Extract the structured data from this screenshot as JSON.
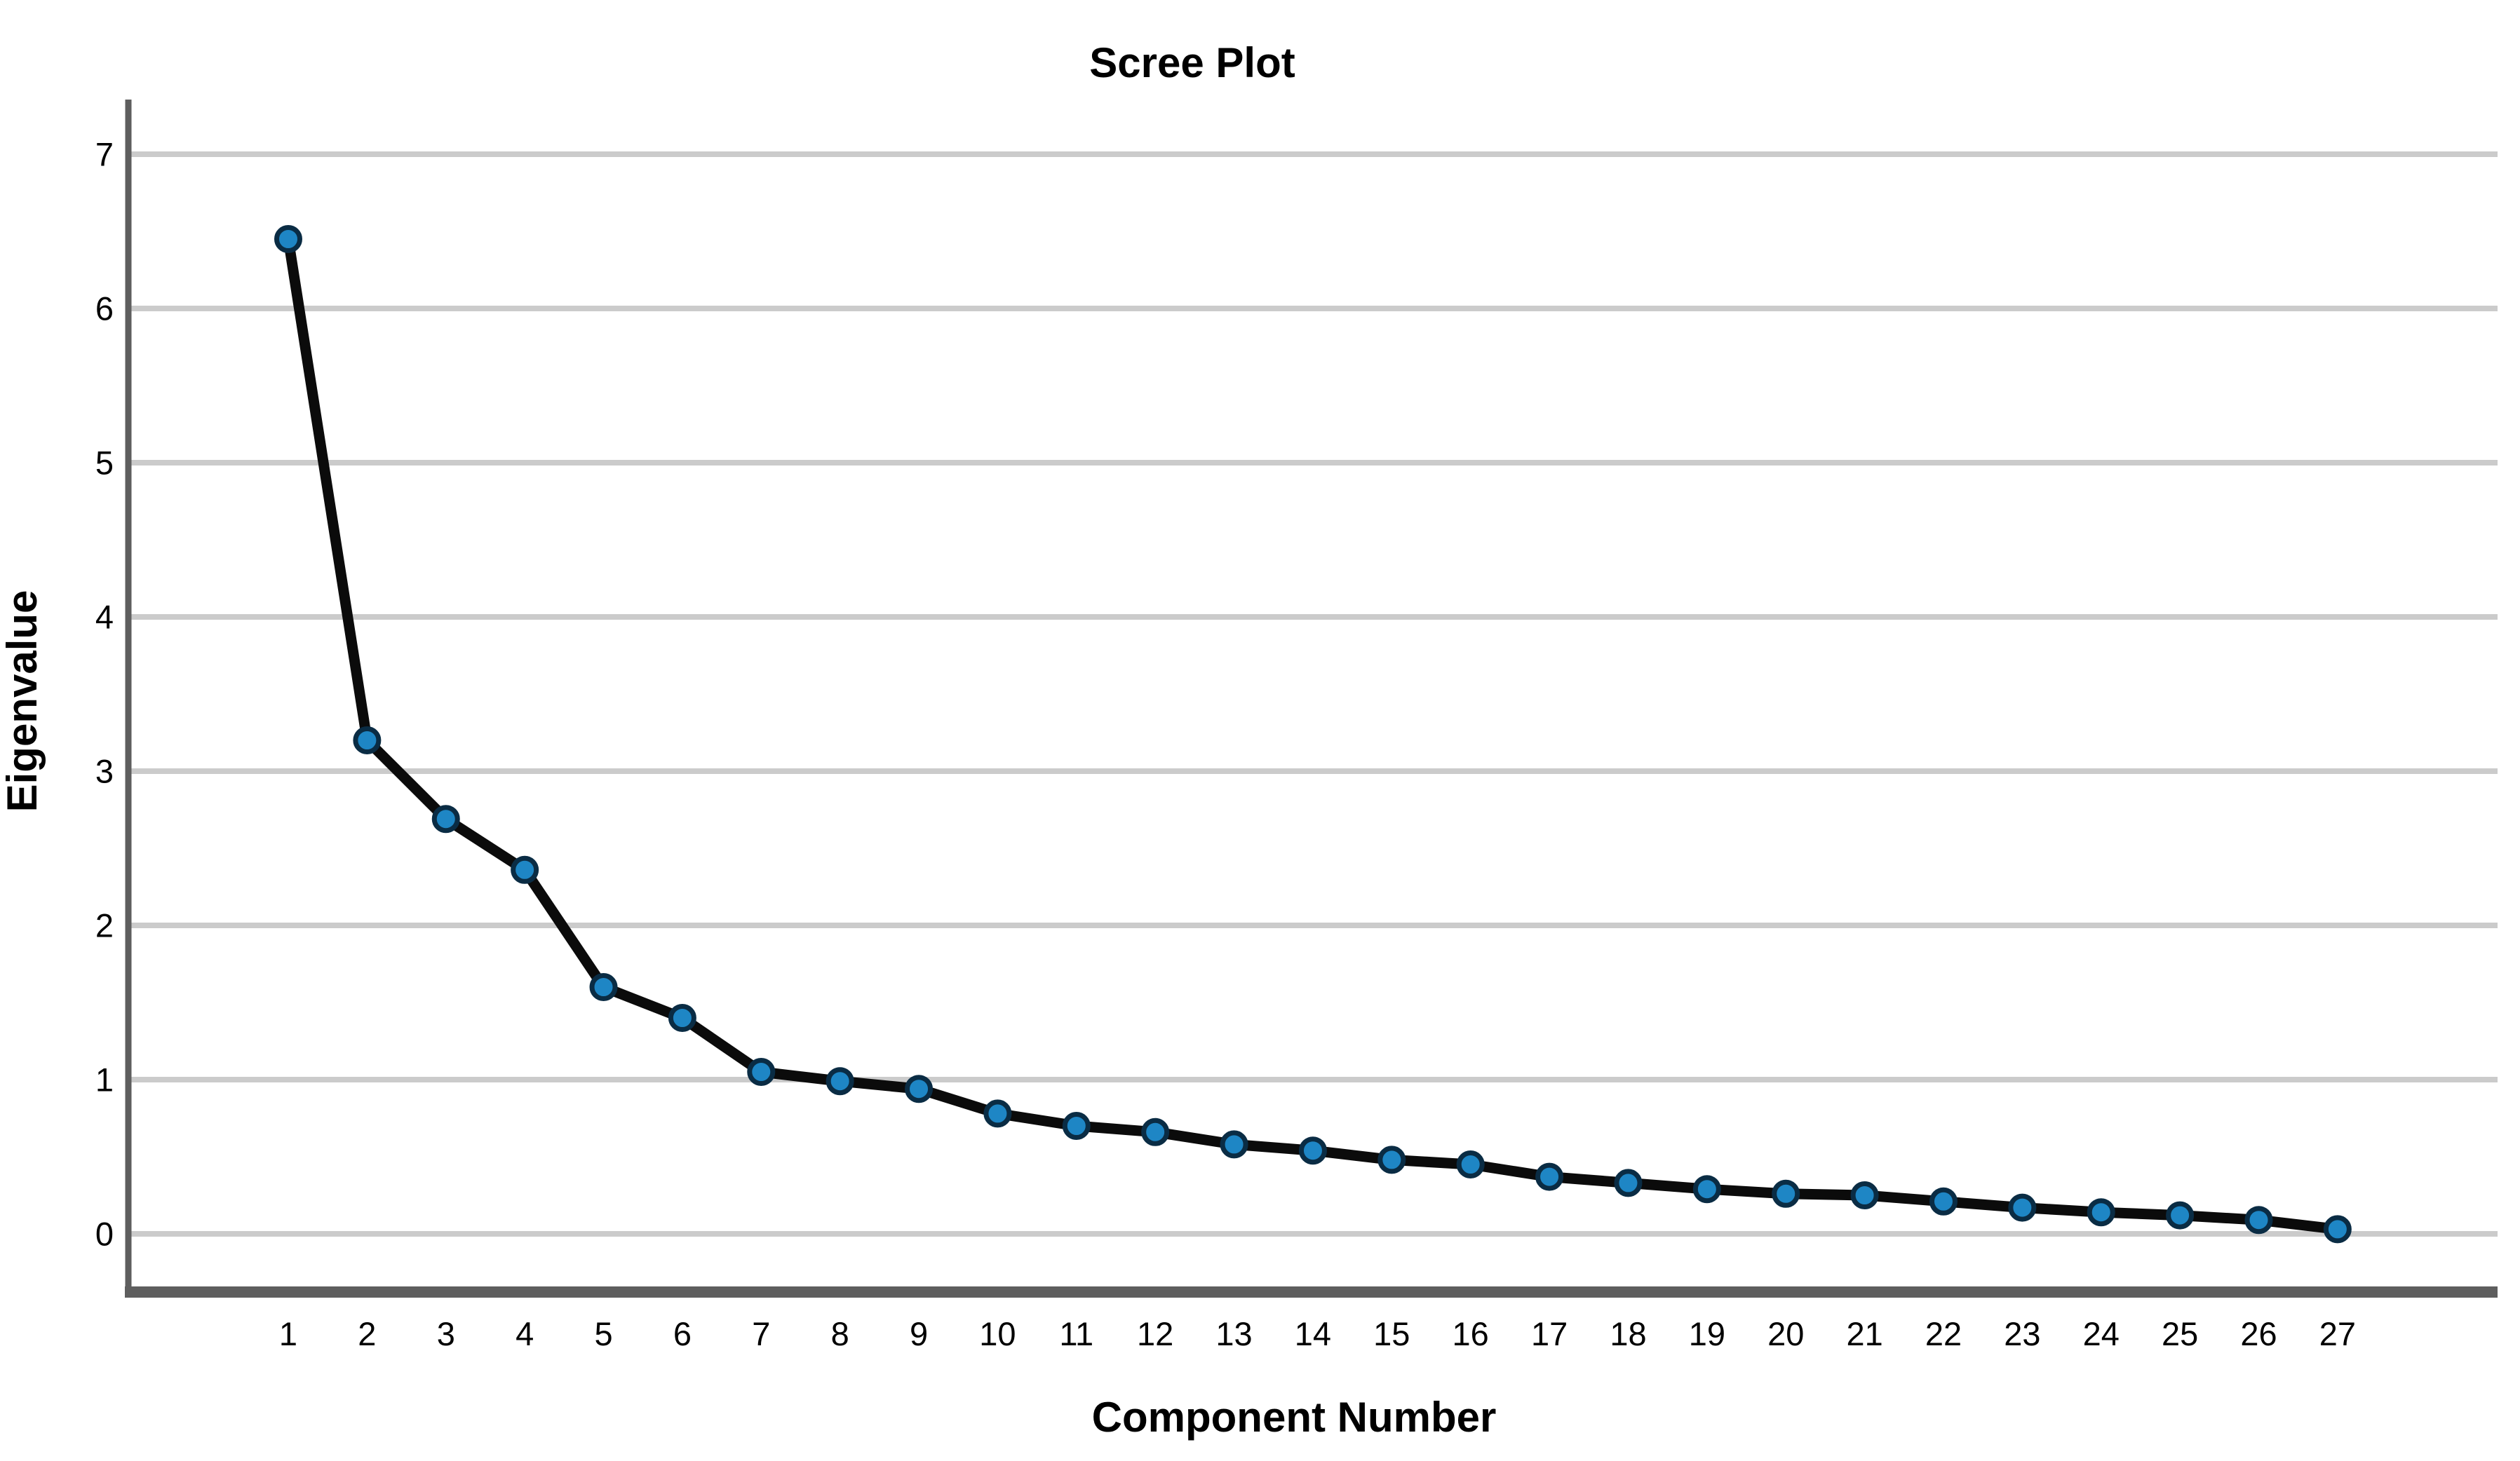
{
  "chart_data": {
    "type": "line",
    "title": "Scree Plot",
    "xlabel": "Component Number",
    "ylabel": "Eigenvalue",
    "series_name": "Eigenvalue",
    "categories": [
      1,
      2,
      3,
      4,
      5,
      6,
      7,
      8,
      9,
      10,
      11,
      12,
      13,
      14,
      15,
      16,
      17,
      18,
      19,
      20,
      21,
      22,
      23,
      24,
      25,
      26,
      27
    ],
    "values": [
      6.45,
      3.2,
      2.69,
      2.36,
      1.6,
      1.4,
      1.05,
      0.99,
      0.94,
      0.78,
      0.7,
      0.66,
      0.58,
      0.54,
      0.48,
      0.45,
      0.37,
      0.33,
      0.29,
      0.26,
      0.25,
      0.21,
      0.17,
      0.14,
      0.12,
      0.09,
      0.03
    ],
    "yticks": [
      0,
      1,
      2,
      3,
      4,
      5,
      6,
      7
    ],
    "ylim": [
      -0.38,
      7.35
    ],
    "grid": "horizontal",
    "legend": "none",
    "marker": "circle",
    "colors": {
      "background": "#ffffff",
      "grid": "#cbcbcb",
      "axis": "#5e5e5e",
      "line": "#0b0b0b",
      "marker_fill": "#1e86c5",
      "marker_stroke": "#0a2c44",
      "text": "#000000"
    }
  }
}
